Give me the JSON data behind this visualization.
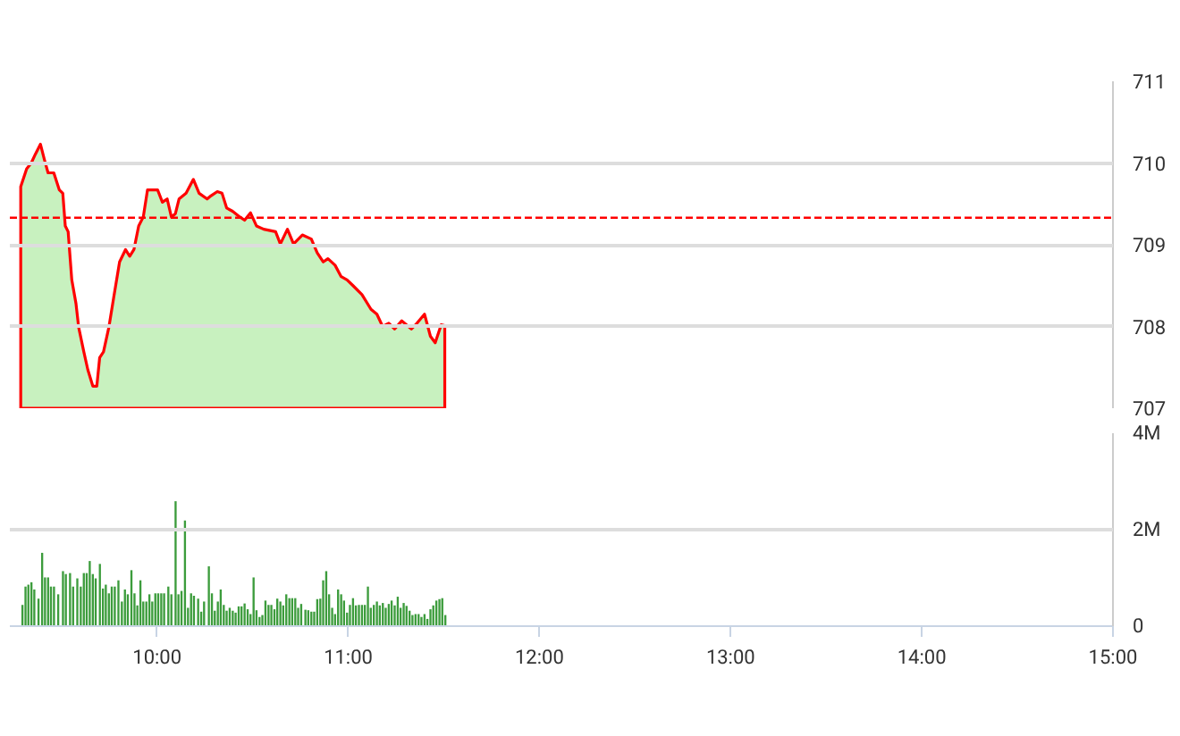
{
  "chart_data": [
    {
      "type": "area",
      "xlim": [
        9.23,
        15.0
      ],
      "ylim": [
        707,
        711
      ],
      "yticks": [
        707,
        708,
        709,
        710,
        711
      ],
      "grid": "y",
      "tick_labels": "y",
      "ref_lines": [
        {
          "axis": "y",
          "value": 709.33,
          "color": "#ff0000",
          "line_style": "dashed"
        }
      ],
      "series": [
        {
          "color": "#9be58a",
          "x": [
            9.287,
            9.318,
            9.342,
            9.364,
            9.39,
            9.411,
            9.43,
            9.46,
            9.489,
            9.507,
            9.52,
            9.535,
            9.554,
            9.576,
            9.59,
            9.617,
            9.638,
            9.664,
            9.685,
            9.7,
            9.72,
            9.748,
            9.773,
            9.804,
            9.835,
            9.857,
            9.879,
            9.904,
            9.928,
            9.95,
            9.972,
            10.003,
            10.028,
            10.053,
            10.075,
            10.096,
            10.115,
            10.152,
            10.19,
            10.22,
            10.262,
            10.283,
            10.315,
            10.34,
            10.364,
            10.395,
            10.433,
            10.458,
            10.489,
            10.52,
            10.558,
            10.62,
            10.645,
            10.682,
            10.714,
            10.76,
            10.807,
            10.838,
            10.869,
            10.894,
            10.931,
            10.963,
            10.994,
            11.025,
            11.072,
            11.119,
            11.15,
            11.18,
            11.212,
            11.243,
            11.28,
            11.33,
            11.352,
            11.399,
            11.43,
            11.455,
            11.486,
            11.505
          ],
          "values": [
            709.71,
            709.93,
            710.0,
            710.11,
            710.23,
            710.04,
            709.88,
            709.88,
            709.67,
            709.63,
            709.23,
            709.16,
            708.57,
            708.28,
            707.99,
            707.69,
            707.47,
            707.27,
            707.27,
            707.62,
            707.69,
            707.99,
            708.35,
            708.79,
            708.94,
            708.86,
            708.94,
            709.23,
            709.34,
            709.67,
            709.67,
            709.67,
            709.52,
            709.56,
            709.34,
            709.38,
            709.56,
            709.63,
            709.8,
            709.63,
            709.56,
            709.6,
            709.65,
            709.63,
            709.45,
            709.41,
            709.34,
            709.3,
            709.39,
            709.23,
            709.19,
            709.16,
            709.01,
            709.19,
            709.01,
            709.12,
            709.07,
            708.9,
            708.79,
            708.83,
            708.75,
            708.61,
            708.57,
            708.5,
            708.39,
            708.21,
            708.15,
            708.0,
            708.04,
            707.97,
            708.07,
            707.97,
            708.02,
            708.15,
            707.88,
            707.8,
            708.02,
            708.01
          ]
        }
      ]
    },
    {
      "type": "bar",
      "xlim": [
        9.23,
        15.0
      ],
      "ylim": [
        0,
        4
      ],
      "yticks": [
        {
          "value": 0,
          "label": "0"
        },
        {
          "value": 2,
          "label": "2M"
        },
        {
          "value": 4,
          "label": "4M"
        }
      ],
      "xticks": [
        {
          "value": 10,
          "label": "10:00"
        },
        {
          "value": 11,
          "label": "11:00"
        },
        {
          "value": 12,
          "label": "12:00"
        },
        {
          "value": 13,
          "label": "13:00"
        },
        {
          "value": 14,
          "label": "14:00"
        },
        {
          "value": 15,
          "label": "15:00"
        }
      ],
      "grid": "y",
      "series": [
        {
          "color": "#3c9c3c",
          "x": [
            9.296,
            9.312,
            9.327,
            9.343,
            9.358,
            9.38,
            9.399,
            9.414,
            9.43,
            9.445,
            9.461,
            9.483,
            9.508,
            9.523,
            9.545,
            9.561,
            9.583,
            9.601,
            9.617,
            9.632,
            9.648,
            9.664,
            9.679,
            9.701,
            9.717,
            9.732,
            9.748,
            9.763,
            9.779,
            9.798,
            9.816,
            9.832,
            9.847,
            9.866,
            9.882,
            9.897,
            9.913,
            9.928,
            9.944,
            9.96,
            9.975,
            9.991,
            10.006,
            10.022,
            10.037,
            10.059,
            10.075,
            10.097,
            10.112,
            10.128,
            10.146,
            10.162,
            10.178,
            10.193,
            10.215,
            10.231,
            10.246,
            10.271,
            10.287,
            10.302,
            10.318,
            10.333,
            10.349,
            10.364,
            10.38,
            10.396,
            10.411,
            10.427,
            10.442,
            10.458,
            10.474,
            10.489,
            10.505,
            10.52,
            10.536,
            10.551,
            10.567,
            10.583,
            10.598,
            10.614,
            10.629,
            10.645,
            10.66,
            10.676,
            10.692,
            10.707,
            10.723,
            10.738,
            10.754,
            10.776,
            10.791,
            10.807,
            10.822,
            10.838,
            10.854,
            10.869,
            10.885,
            10.9,
            10.916,
            10.931,
            10.947,
            10.963,
            10.978,
            10.994,
            11.009,
            11.025,
            11.04,
            11.056,
            11.072,
            11.087,
            11.103,
            11.118,
            11.134,
            11.15,
            11.165,
            11.181,
            11.196,
            11.212,
            11.227,
            11.243,
            11.259,
            11.274,
            11.29,
            11.305,
            11.321,
            11.336,
            11.352,
            11.368,
            11.383,
            11.399,
            11.414,
            11.43,
            11.445,
            11.461,
            11.477,
            11.492,
            11.508
          ],
          "values": [
            0.44,
            0.82,
            0.86,
            0.91,
            0.76,
            0.57,
            1.52,
            1.01,
            1.01,
            0.82,
            0.82,
            0.66,
            1.14,
            1.08,
            1.1,
            0.82,
            0.99,
            0.82,
            1.1,
            1.1,
            1.35,
            1.08,
            0.99,
            1.29,
            0.78,
            0.86,
            0.68,
            0.82,
            0.82,
            0.95,
            0.51,
            0.76,
            0.66,
            1.16,
            0.68,
            0.43,
            0.95,
            0.51,
            0.51,
            0.66,
            0.51,
            0.68,
            0.68,
            0.68,
            0.68,
            0.82,
            0.66,
            2.59,
            0.66,
            0.73,
            2.19,
            0.38,
            0.68,
            0.63,
            0.57,
            0.3,
            0.51,
            1.24,
            0.68,
            0.32,
            0.51,
            0.76,
            0.44,
            0.32,
            0.38,
            0.32,
            0.28,
            0.41,
            0.41,
            0.47,
            0.35,
            0.25,
            1.01,
            0.33,
            0.19,
            0.23,
            0.53,
            0.44,
            0.44,
            0.35,
            0.57,
            0.51,
            0.43,
            0.66,
            0.58,
            0.58,
            0.58,
            0.38,
            0.46,
            0.34,
            0.33,
            0.3,
            0.3,
            0.56,
            0.57,
            0.95,
            1.14,
            0.66,
            0.38,
            0.25,
            0.76,
            0.66,
            0.53,
            0.28,
            0.44,
            0.58,
            0.43,
            0.44,
            0.44,
            0.44,
            0.82,
            0.38,
            0.44,
            0.51,
            0.43,
            0.48,
            0.38,
            0.46,
            0.53,
            0.43,
            0.61,
            0.38,
            0.48,
            0.42,
            0.32,
            0.23,
            0.25,
            0.25,
            0.19,
            0.25,
            0.15,
            0.35,
            0.43,
            0.53,
            0.56,
            0.58,
            0.23
          ]
        }
      ]
    }
  ]
}
